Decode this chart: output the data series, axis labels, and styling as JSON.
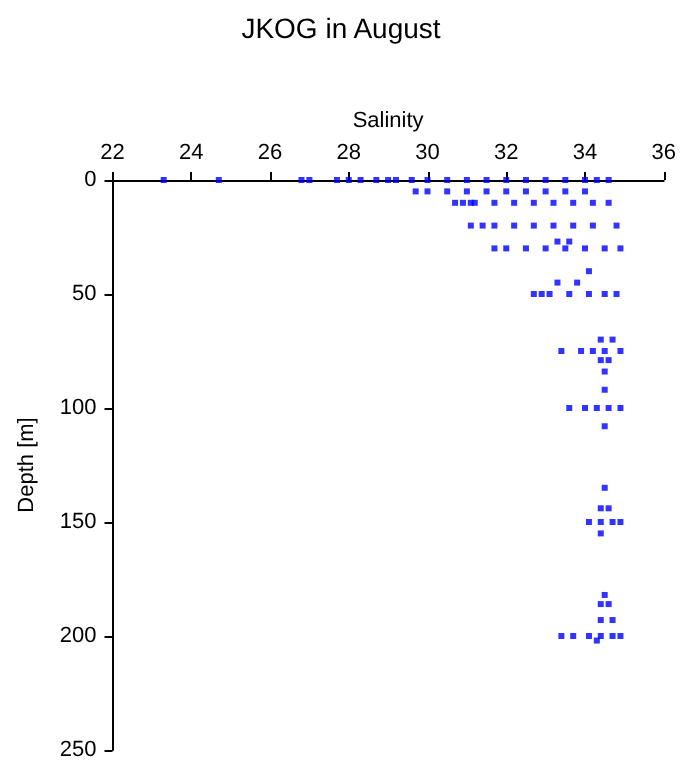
{
  "chart_data": {
    "type": "scatter",
    "title": "JKOG in August",
    "xlabel": "Salinity",
    "ylabel": "Depth [m]",
    "xlim": [
      22,
      36
    ],
    "xticks": [
      22,
      24,
      26,
      28,
      30,
      32,
      34,
      36
    ],
    "ylim": [
      250,
      0
    ],
    "yticks": [
      0,
      50,
      100,
      150,
      200,
      250
    ],
    "marker": "square",
    "series": [
      {
        "color": "#0000ff",
        "x": [
          23.3,
          24.7,
          26.8,
          27.0,
          27.7,
          28.0,
          28.3,
          28.7,
          29.0,
          29.2,
          29.6,
          30.0,
          30.5,
          31.0,
          31.5,
          32.0,
          32.5,
          33.0,
          33.5,
          34.0,
          34.3,
          34.6,
          29.7,
          30.0,
          30.5,
          31.0,
          31.5,
          32.0,
          32.5,
          33.0,
          33.5,
          34.0,
          30.7,
          30.9,
          31.1,
          31.2,
          31.7,
          32.2,
          32.7,
          33.2,
          33.7,
          34.2,
          34.6,
          31.1,
          31.4,
          31.7,
          32.2,
          32.7,
          33.2,
          33.7,
          34.2,
          34.8,
          33.3,
          33.6,
          31.7,
          32.0,
          32.5,
          33.0,
          33.5,
          34.0,
          34.5,
          34.9,
          34.1,
          33.3,
          33.8,
          32.7,
          32.9,
          33.1,
          33.6,
          34.1,
          34.5,
          34.8,
          34.4,
          34.7,
          33.4,
          33.9,
          34.2,
          34.5,
          34.9,
          34.4,
          34.6,
          34.5,
          34.5,
          33.6,
          34.0,
          34.3,
          34.6,
          34.9,
          34.5,
          34.5,
          34.4,
          34.6,
          34.1,
          34.4,
          34.7,
          34.9,
          34.4,
          34.5,
          34.4,
          34.6,
          34.4,
          34.7,
          33.4,
          33.7,
          34.1,
          34.4,
          34.7,
          34.9,
          34.3
        ],
        "values": [
          0,
          0,
          0,
          0,
          0,
          0,
          0,
          0,
          0,
          0,
          0,
          0,
          0,
          0,
          0,
          0,
          0,
          0,
          0,
          0,
          0,
          0,
          5,
          5,
          5,
          5,
          5,
          5,
          5,
          5,
          5,
          5,
          10,
          10,
          10,
          10,
          10,
          10,
          10,
          10,
          10,
          10,
          10,
          20,
          20,
          20,
          20,
          20,
          20,
          20,
          20,
          20,
          27,
          27,
          30,
          30,
          30,
          30,
          30,
          30,
          30,
          30,
          40,
          45,
          45,
          50,
          50,
          50,
          50,
          50,
          50,
          50,
          70,
          70,
          75,
          75,
          75,
          75,
          75,
          79,
          79,
          84,
          92,
          100,
          100,
          100,
          100,
          100,
          108,
          135,
          144,
          144,
          150,
          150,
          150,
          150,
          155,
          182,
          186,
          186,
          193,
          193,
          200,
          200,
          200,
          200,
          200,
          200,
          202
        ]
      }
    ]
  }
}
